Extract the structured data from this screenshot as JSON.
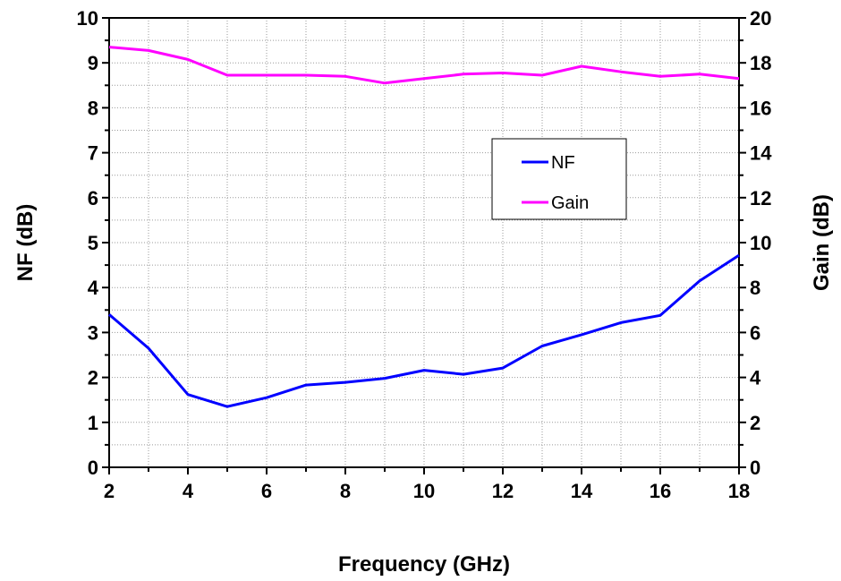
{
  "chart_data": {
    "type": "line",
    "xlabel": "Frequency (GHz)",
    "ylabel": "NF (dB)",
    "y2label": "Gain (dB)",
    "xlim": [
      2,
      18
    ],
    "ylim": [
      0,
      10
    ],
    "y2lim": [
      0,
      20
    ],
    "x_ticks": [
      2,
      4,
      6,
      8,
      10,
      12,
      14,
      16,
      18
    ],
    "y_ticks": [
      0,
      1,
      2,
      3,
      4,
      5,
      6,
      7,
      8,
      9,
      10
    ],
    "y2_ticks": [
      0,
      2,
      4,
      6,
      8,
      10,
      12,
      14,
      16,
      18,
      20
    ],
    "grid": true,
    "legend_position": "center-right",
    "x": [
      2,
      3,
      4,
      5,
      6,
      7,
      8,
      9,
      10,
      11,
      12,
      13,
      14,
      15,
      16,
      17,
      18
    ],
    "series": [
      {
        "name": "NF",
        "axis": "left",
        "color": "#0000ff",
        "values": [
          3.4,
          2.65,
          1.62,
          1.35,
          1.55,
          1.83,
          1.89,
          1.98,
          2.16,
          2.07,
          2.21,
          2.7,
          2.95,
          3.22,
          3.38,
          4.15,
          4.72
        ]
      },
      {
        "name": "Gain",
        "axis": "right",
        "color": "#ff00ff",
        "values": [
          18.7,
          18.55,
          18.15,
          17.45,
          17.45,
          17.45,
          17.4,
          17.1,
          17.3,
          17.5,
          17.55,
          17.45,
          17.85,
          17.6,
          17.4,
          17.5,
          17.3
        ]
      }
    ]
  }
}
